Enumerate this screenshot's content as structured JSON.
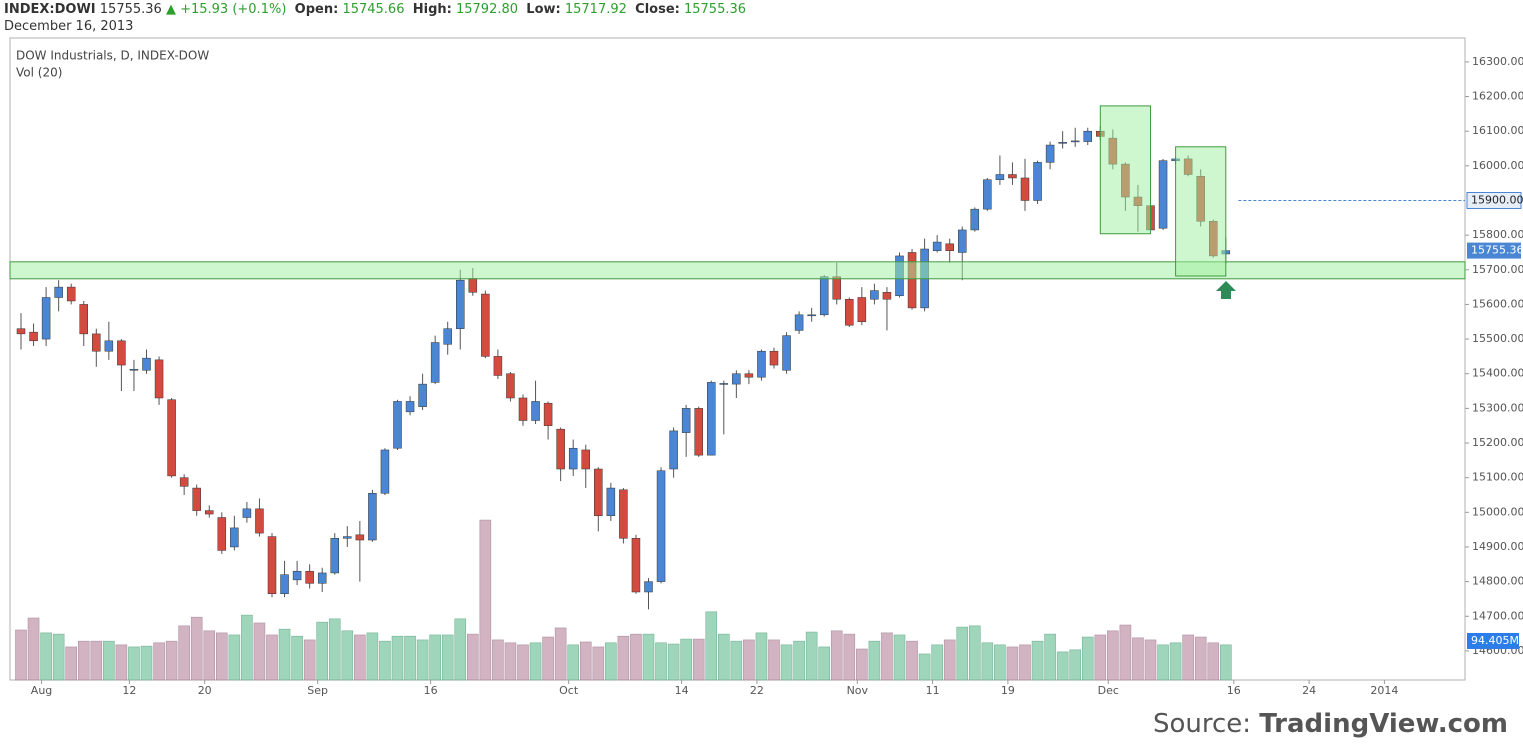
{
  "header": {
    "symbol": "INDEX:DOWI",
    "last": "15755.36",
    "change": "▲ +15.93 (+0.1%)",
    "open_label": "Open:",
    "open": "15745.66",
    "high_label": "High:",
    "high": "15792.80",
    "low_label": "Low:",
    "low": "15717.92",
    "close_label": "Close:",
    "close": "15755.36",
    "date": "December 16, 2013"
  },
  "chart_data": {
    "type": "candlestick",
    "title": "DOW Industrials, D, INDEX-DOW",
    "subtitle": "Vol (20)",
    "categories": [
      null,
      "Aug",
      null,
      null,
      null,
      null,
      null,
      null,
      "12",
      null,
      null,
      null,
      null,
      null,
      "20",
      null,
      null,
      null,
      null,
      null,
      null,
      null,
      null,
      "Sep",
      null,
      null,
      null,
      null,
      null,
      null,
      null,
      null,
      "16",
      null,
      null,
      null,
      null,
      null,
      null,
      null,
      null,
      null,
      null,
      "Oct",
      null,
      null,
      null,
      null,
      null,
      null,
      null,
      null,
      "14",
      null,
      null,
      null,
      null,
      null,
      "22",
      null,
      null,
      null,
      null,
      null,
      null,
      null,
      "Nov",
      null,
      null,
      null,
      null,
      null,
      "11",
      null,
      null,
      null,
      null,
      null,
      "19",
      null,
      null,
      null,
      null,
      null,
      null,
      null,
      "Dec",
      null,
      null,
      null,
      null,
      null,
      null,
      null,
      null,
      null,
      "16",
      null,
      null,
      null,
      null,
      null,
      "24",
      null,
      null,
      null,
      null,
      null,
      "2014",
      null,
      null,
      null,
      null,
      null,
      null,
      null
    ],
    "open": [
      15530,
      15520,
      15500,
      15620,
      15650,
      15600,
      15515,
      15465,
      15495,
      15410,
      15410,
      15440,
      15325,
      15100,
      15070,
      15005,
      14985,
      14900,
      14985,
      15010,
      14930,
      14765,
      14805,
      14830,
      14795,
      14825,
      14925,
      14935,
      14920,
      15055,
      15185,
      15290,
      15305,
      15375,
      15485,
      15530,
      15675,
      15630,
      15450,
      15400,
      15330,
      15265,
      15315,
      15240,
      15125,
      15180,
      15125,
      14990,
      15065,
      14925,
      14770,
      14800,
      15125,
      15230,
      15300,
      15165,
      15370,
      15370,
      15400,
      15390,
      15465,
      15410,
      15525,
      15568,
      15570,
      15680,
      15615,
      15620,
      15615,
      15635,
      15625,
      15750,
      15590,
      15755,
      15775,
      15750,
      15815,
      15875,
      15960,
      15975,
      15965,
      15900,
      16010,
      16065,
      16070,
      16070,
      16100,
      16080,
      16005,
      15910,
      15885,
      15820,
      16015,
      16020,
      15970,
      15840,
      15745.66,
      null,
      null,
      null,
      null,
      null,
      null,
      null,
      null,
      null,
      null,
      null,
      null,
      null,
      null,
      null,
      null,
      null,
      null,
      null
    ],
    "high": [
      15575,
      15545,
      15650,
      15670,
      15660,
      15610,
      15530,
      15550,
      15500,
      15440,
      15470,
      15450,
      15330,
      15110,
      15080,
      15020,
      15000,
      14990,
      15030,
      15040,
      14940,
      14860,
      14860,
      14850,
      14840,
      14940,
      14960,
      14975,
      15065,
      15185,
      15325,
      15335,
      15400,
      15510,
      15550,
      15700,
      15705,
      15640,
      15470,
      15405,
      15340,
      15380,
      15320,
      15245,
      15210,
      15195,
      15130,
      15085,
      15070,
      14935,
      14810,
      15130,
      15245,
      15310,
      15305,
      15380,
      15380,
      15410,
      15410,
      15470,
      15475,
      15520,
      15580,
      15590,
      15685,
      15720,
      15620,
      15650,
      15660,
      15650,
      15750,
      15760,
      15790,
      15800,
      15790,
      15825,
      15880,
      15965,
      16030,
      16010,
      16020,
      16015,
      16070,
      16100,
      16110,
      16110,
      16115,
      16105,
      16010,
      15945,
      15890,
      16020,
      16025,
      16030,
      15990,
      15845,
      15792.8,
      null,
      null,
      null,
      null,
      null,
      null,
      null,
      null,
      null,
      null,
      null,
      null,
      null,
      null,
      null,
      null,
      null,
      null,
      null
    ],
    "low": [
      15470,
      15480,
      15480,
      15580,
      15600,
      15480,
      15420,
      15440,
      15350,
      15350,
      15400,
      15310,
      15100,
      15050,
      14990,
      14985,
      14880,
      14890,
      14970,
      14930,
      14755,
      14755,
      14790,
      14780,
      14770,
      14820,
      14900,
      14800,
      14915,
      15050,
      15180,
      15280,
      15295,
      15370,
      15455,
      15470,
      15625,
      15445,
      15385,
      15320,
      15250,
      15255,
      15210,
      15090,
      15105,
      15070,
      14945,
      14975,
      14910,
      14765,
      14720,
      14795,
      15100,
      15160,
      15160,
      15165,
      15225,
      15330,
      15370,
      15380,
      15415,
      15400,
      15515,
      15550,
      15565,
      15600,
      15535,
      15540,
      15600,
      15525,
      15620,
      15585,
      15580,
      15750,
      15720,
      15670,
      15810,
      15870,
      15945,
      15945,
      15870,
      15890,
      15990,
      16050,
      16055,
      16060,
      16075,
      15990,
      15870,
      15810,
      15805,
      15815,
      16005,
      15970,
      15825,
      15735,
      15717.92,
      null,
      null,
      null,
      null,
      null,
      null,
      null,
      null,
      null,
      null,
      null,
      null,
      null,
      null,
      null,
      null,
      null,
      null,
      null
    ],
    "close": [
      15515,
      15495,
      15620,
      15650,
      15610,
      15515,
      15465,
      15495,
      15425,
      15413,
      15445,
      15330,
      15105,
      15075,
      15005,
      14995,
      14890,
      14955,
      15010,
      14940,
      14765,
      14820,
      14830,
      14795,
      14825,
      14925,
      14930,
      14920,
      15055,
      15180,
      15320,
      15320,
      15370,
      15490,
      15530,
      15670,
      15635,
      15450,
      15395,
      15330,
      15265,
      15320,
      15250,
      15125,
      15185,
      15125,
      14990,
      15070,
      14925,
      14770,
      14800,
      15120,
      15235,
      15300,
      15165,
      15375,
      15372,
      15400,
      15390,
      15465,
      15425,
      15510,
      15570,
      15570,
      15680,
      15615,
      15540,
      15550,
      15640,
      15615,
      15740,
      15590,
      15760,
      15780,
      15755,
      15815,
      15875,
      15960,
      15975,
      15965,
      15900,
      16010,
      16060,
      16068,
      16072,
      16100,
      16085,
      16005,
      15910,
      15885,
      15815,
      16015,
      16020,
      15975,
      15840,
      15740,
      15755.36,
      null,
      null,
      null,
      null,
      null,
      null,
      null,
      null,
      null,
      null,
      null,
      null,
      null,
      null,
      null,
      null,
      null,
      null,
      null
    ],
    "volume": [
      121,
      150,
      114,
      111,
      80,
      94,
      94,
      94,
      85,
      80,
      82,
      90,
      94,
      131,
      152,
      119,
      114,
      109,
      157,
      138,
      109,
      123,
      106,
      97,
      140,
      148,
      119,
      109,
      114,
      94,
      106,
      106,
      97,
      109,
      109,
      148,
      111,
      387,
      97,
      90,
      85,
      90,
      104,
      126,
      85,
      92,
      80,
      90,
      106,
      111,
      111,
      90,
      87,
      99,
      99,
      165,
      111,
      94,
      97,
      114,
      97,
      85,
      94,
      116,
      80,
      119,
      111,
      75,
      94,
      114,
      109,
      94,
      63,
      85,
      97,
      128,
      131,
      90,
      85,
      80,
      85,
      94,
      111,
      68,
      73,
      104,
      109,
      119,
      133,
      102,
      97,
      85,
      90,
      109,
      104,
      90,
      85,
      null,
      null,
      null,
      null,
      null,
      null,
      null,
      null,
      null,
      null,
      null,
      null,
      null,
      null,
      null,
      null,
      null,
      null,
      null
    ],
    "up_color": "#4a86d4",
    "down_color": "#d34b3f",
    "volume_up_color": "#8fcfb0",
    "volume_down_color": "#c9a6b8",
    "ylim": [
      14516,
      16369
    ],
    "yticks": [
      {
        "value": 14600,
        "label": "14600.00"
      },
      {
        "value": 14700,
        "label": "14700.00"
      },
      {
        "value": 14800,
        "label": "14800.00"
      },
      {
        "value": 14900,
        "label": "14900.00"
      },
      {
        "value": 15000,
        "label": "15000.00"
      },
      {
        "value": 15100,
        "label": "15100.00"
      },
      {
        "value": 15200,
        "label": "15200.00"
      },
      {
        "value": 15300,
        "label": "15300.00"
      },
      {
        "value": 15400,
        "label": "15400.00"
      },
      {
        "value": 15500,
        "label": "15500.00"
      },
      {
        "value": 15600,
        "label": "15600.00"
      },
      {
        "value": 15700,
        "label": "15700.00"
      },
      {
        "value": 15800,
        "label": "15800.00"
      },
      {
        "value": 16000,
        "label": "16000.00"
      },
      {
        "value": 16100,
        "label": "16100.00"
      },
      {
        "value": 16200,
        "label": "16200.00"
      },
      {
        "value": 16300,
        "label": "16300.00"
      }
    ],
    "volume_lim": [
      0,
      1553.6
    ],
    "volume_ma_label": {
      "value": 94.405,
      "label": "94.405M"
    },
    "hline": {
      "value": 15900,
      "label": "15900.00",
      "start": 97
    },
    "zone": {
      "y": [
        15674,
        15723
      ]
    },
    "boxes": [
      {
        "x": [
          86,
          90
        ],
        "y": [
          15804,
          16173
        ]
      },
      {
        "x": [
          92,
          96
        ],
        "y": [
          15682,
          16055
        ]
      }
    ],
    "zone_color": "#9ff09f",
    "source_prefix": "Source:",
    "source_name": "TradingView.com"
  }
}
